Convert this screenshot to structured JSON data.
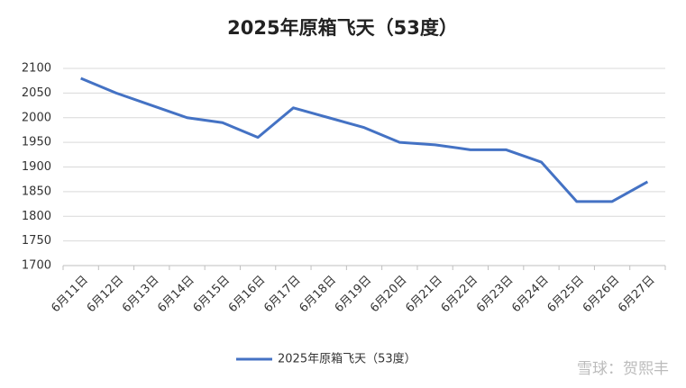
{
  "chart_data": {
    "type": "line",
    "title": "2025年原箱飞天（53度）",
    "categories": [
      "6月11日",
      "6月12日",
      "6月13日",
      "6月14日",
      "6月15日",
      "6月16日",
      "6月17日",
      "6月18日",
      "6月19日",
      "6月20日",
      "6月21日",
      "6月22日",
      "6月23日",
      "6月24日",
      "6月25日",
      "6月26日",
      "6月27日"
    ],
    "series": [
      {
        "name": "2025年原箱飞天（53度）",
        "color": "#4472c4",
        "values": [
          2080,
          2050,
          2025,
          2000,
          1990,
          1960,
          2020,
          2000,
          1980,
          1950,
          1945,
          1935,
          1935,
          1910,
          1830,
          1830,
          1870
        ]
      }
    ],
    "ylim": [
      1700,
      2100
    ],
    "yticks": [
      1700,
      1750,
      1800,
      1850,
      1900,
      1950,
      2000,
      2050,
      2100
    ],
    "grid": true,
    "legend": "bottom",
    "watermark": "雪球：贺熙丰"
  }
}
